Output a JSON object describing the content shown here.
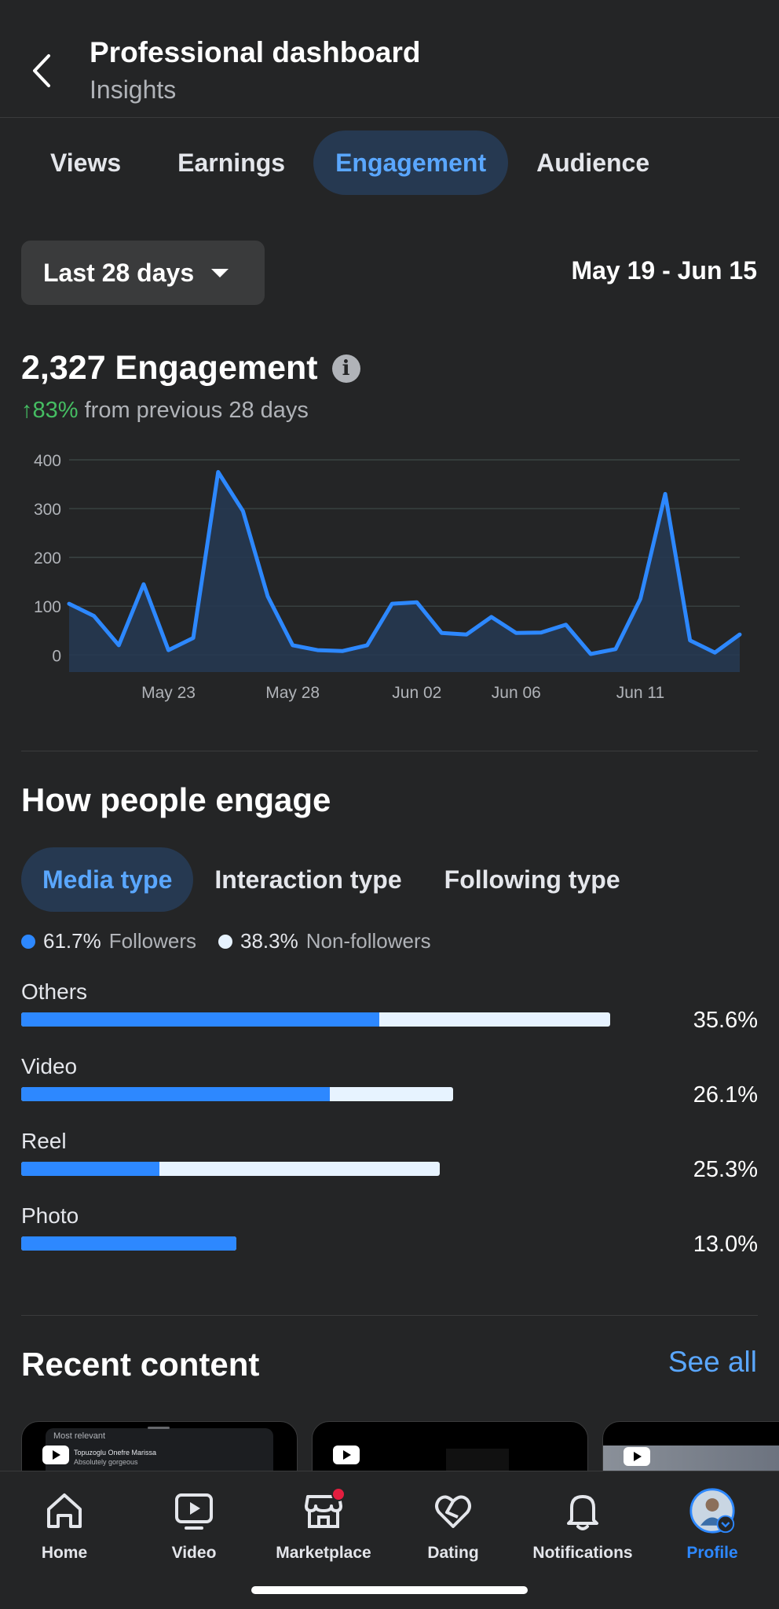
{
  "header": {
    "title": "Professional dashboard",
    "subtitle": "Insights"
  },
  "tabs": [
    {
      "label": "Views"
    },
    {
      "label": "Earnings"
    },
    {
      "label": "Engagement",
      "active": true
    },
    {
      "label": "Audience"
    }
  ],
  "filter": {
    "range_label": "Last 28 days",
    "dates": "May 19 - Jun 15"
  },
  "summary": {
    "total": "2,327 Engagement",
    "change_pct": "↑83%",
    "change_text": " from previous 28 days"
  },
  "chart_data": {
    "type": "area",
    "x_start": "May 19",
    "x_tick_labels": [
      "May 23",
      "May 28",
      "Jun 02",
      "Jun 06",
      "Jun 11"
    ],
    "x_tick_days": [
      4,
      9,
      14,
      18,
      23
    ],
    "y_ticks": [
      0,
      100,
      200,
      300,
      400
    ],
    "ylim": [
      -35,
      400
    ],
    "values": [
      105,
      80,
      20,
      145,
      10,
      35,
      375,
      295,
      120,
      20,
      10,
      8,
      20,
      105,
      108,
      45,
      42,
      78,
      45,
      46,
      62,
      2,
      12,
      115,
      330,
      30,
      5,
      42
    ],
    "line_color": "#2d88ff",
    "fill_color": "#263951",
    "grid": true
  },
  "engage": {
    "title": "How people engage",
    "subtabs": [
      {
        "label": "Media type",
        "active": true
      },
      {
        "label": "Interaction type"
      },
      {
        "label": "Following type"
      }
    ],
    "legend": [
      {
        "value": "61.7%",
        "label": "Followers",
        "color": "#2d88ff"
      },
      {
        "value": "38.3%",
        "label": "Non-followers",
        "color": "#e7f3ff"
      }
    ],
    "bars": [
      {
        "label": "Others",
        "pct": "35.6%",
        "total": 35.6,
        "followers_share": 0.608
      },
      {
        "label": "Video",
        "pct": "26.1%",
        "total": 26.1,
        "followers_share": 0.714
      },
      {
        "label": "Reel",
        "pct": "25.3%",
        "total": 25.3,
        "followers_share": 0.331
      },
      {
        "label": "Photo",
        "pct": "13.0%",
        "total": 13.0,
        "followers_share": 1.0
      }
    ]
  },
  "recent": {
    "title": "Recent content",
    "see_all": "See all",
    "card1": {
      "filter": "Most relevant",
      "name": "Topuzoglu Onefre Marissa",
      "comment": "Absolutely gorgeous"
    }
  },
  "nav": [
    {
      "label": "Home",
      "icon": "home-icon"
    },
    {
      "label": "Video",
      "icon": "video-icon"
    },
    {
      "label": "Marketplace",
      "icon": "marketplace-icon"
    },
    {
      "label": "Dating",
      "icon": "dating-icon"
    },
    {
      "label": "Notifications",
      "icon": "bell-icon"
    },
    {
      "label": "Profile",
      "icon": "avatar",
      "active": true
    }
  ]
}
